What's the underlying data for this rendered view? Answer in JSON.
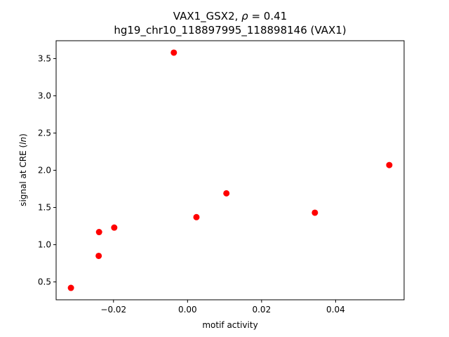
{
  "chart_data": {
    "type": "scatter",
    "title_line1_prefix": "VAX1_GSX2, ",
    "title_line1_rho": "ρ",
    "title_line1_value": " = 0.41",
    "title_line2": "hg19_chr10_118897995_118898146 (VAX1)",
    "xlabel": "motif activity",
    "ylabel_prefix": "signal at CRE (",
    "ylabel_italic": "ln",
    "ylabel_suffix": ")",
    "xlim": [
      -0.0355,
      0.0585
    ],
    "ylim": [
      0.26,
      3.74
    ],
    "x_ticks": [
      {
        "value": -0.02,
        "label": "−0.02"
      },
      {
        "value": 0.0,
        "label": "0.00"
      },
      {
        "value": 0.02,
        "label": "0.02"
      },
      {
        "value": 0.04,
        "label": "0.04"
      }
    ],
    "y_ticks": [
      {
        "value": 0.5,
        "label": "0.5"
      },
      {
        "value": 1.0,
        "label": "1.0"
      },
      {
        "value": 1.5,
        "label": "1.5"
      },
      {
        "value": 2.0,
        "label": "2.0"
      },
      {
        "value": 2.5,
        "label": "2.5"
      },
      {
        "value": 3.0,
        "label": "3.0"
      },
      {
        "value": 3.5,
        "label": "3.5"
      }
    ],
    "marker_color": "#ff0000",
    "grid": false,
    "legend": "none",
    "points": [
      {
        "x": -0.0315,
        "y": 0.42
      },
      {
        "x": -0.024,
        "y": 0.85
      },
      {
        "x": -0.0239,
        "y": 1.17
      },
      {
        "x": -0.0198,
        "y": 1.23
      },
      {
        "x": -0.0037,
        "y": 3.58
      },
      {
        "x": 0.0024,
        "y": 1.37
      },
      {
        "x": 0.0105,
        "y": 1.69
      },
      {
        "x": 0.0344,
        "y": 1.43
      },
      {
        "x": 0.0545,
        "y": 2.07
      }
    ]
  }
}
